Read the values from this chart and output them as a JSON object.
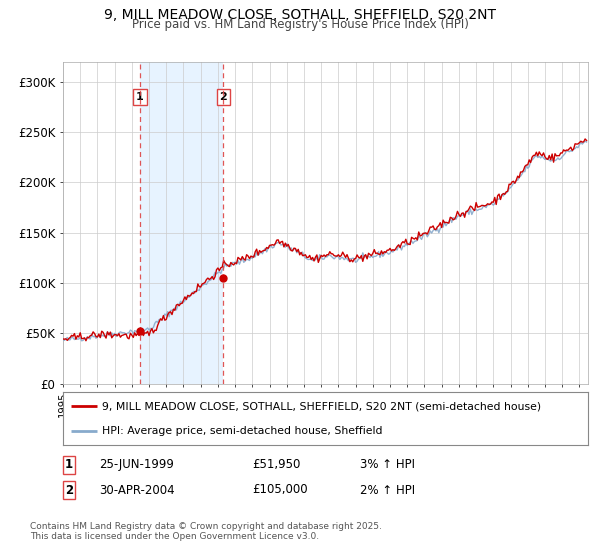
{
  "title": "9, MILL MEADOW CLOSE, SOTHALL, SHEFFIELD, S20 2NT",
  "subtitle": "Price paid vs. HM Land Registry's House Price Index (HPI)",
  "ylim": [
    0,
    320000
  ],
  "yticks": [
    0,
    50000,
    100000,
    150000,
    200000,
    250000,
    300000
  ],
  "ytick_labels": [
    "£0",
    "£50K",
    "£100K",
    "£150K",
    "£200K",
    "£250K",
    "£300K"
  ],
  "purchase1_year": 1999.47,
  "purchase1_price": 51950,
  "purchase2_year": 2004.32,
  "purchase2_price": 105000,
  "purchase1_label": "1",
  "purchase2_label": "2",
  "legend_line1": "9, MILL MEADOW CLOSE, SOTHALL, SHEFFIELD, S20 2NT (semi-detached house)",
  "legend_line2": "HPI: Average price, semi-detached house, Sheffield",
  "table_row1": [
    "1",
    "25-JUN-1999",
    "£51,950",
    "3% ↑ HPI"
  ],
  "table_row2": [
    "2",
    "30-APR-2004",
    "£105,000",
    "2% ↑ HPI"
  ],
  "footnote": "Contains HM Land Registry data © Crown copyright and database right 2025.\nThis data is licensed under the Open Government Licence v3.0.",
  "line_color_red": "#cc0000",
  "line_color_blue": "#88aacc",
  "shade_color": "#ddeeff",
  "vline_color": "#dd4444",
  "background_color": "#ffffff",
  "grid_color": "#cccccc",
  "xlim_left": 1995.0,
  "xlim_right": 2025.5
}
